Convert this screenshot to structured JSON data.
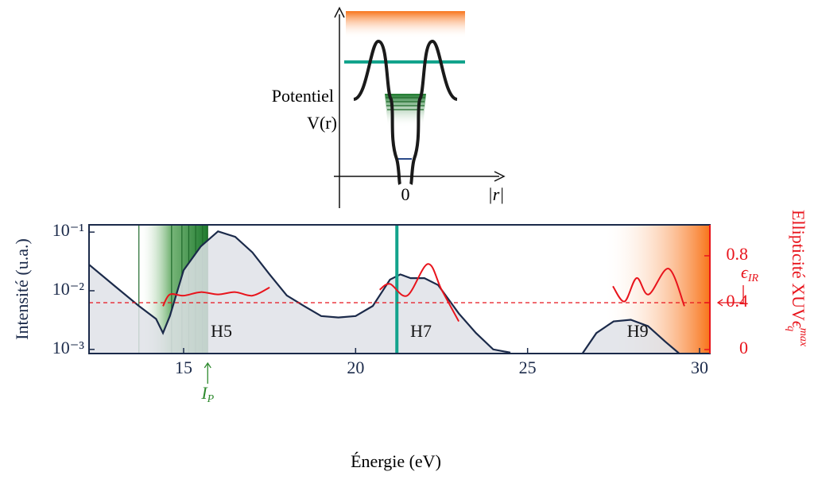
{
  "inset": {
    "labels": {
      "potential": "Potentiel",
      "vr": "V(r)",
      "origin": "0",
      "radius": "|r|"
    }
  },
  "chart_data": {
    "type": "line",
    "xlabel": "Énergie (eV)",
    "ylabel": "Intensité (u.a.)",
    "y2label": "Ellipticité XUV",
    "y2label_symbol": "ϵ",
    "y2label_sub": "q",
    "y2label_sup": "max",
    "xlim": [
      12.25,
      30.3
    ],
    "xticks": [
      15,
      20,
      25,
      30
    ],
    "ylim": [
      0.00085,
      0.133
    ],
    "log_y": true,
    "yticks": [
      {
        "value": 0.001,
        "label": "10⁻³"
      },
      {
        "value": 0.01,
        "label": "10⁻²"
      },
      {
        "value": 0.1,
        "label": "10⁻¹"
      }
    ],
    "y2lim": [
      -0.034,
      1.064
    ],
    "y2ticks": [
      0,
      0.4,
      0.8
    ],
    "series": [
      {
        "name": "Intensité",
        "color": "#1b2a4a",
        "fill": "#dfe2e8",
        "x": [
          12.25,
          13,
          13.7,
          14.2,
          14.4,
          14.6,
          15,
          15.5,
          16,
          16.5,
          17,
          17.5,
          18,
          18.5,
          19,
          19.5,
          20,
          20.5,
          21,
          21.3,
          21.6,
          22,
          22.4,
          23,
          23.5,
          24,
          24.5,
          null,
          26.6,
          27,
          27.5,
          28,
          28.5,
          29,
          29.4
        ],
        "values": [
          0.0279,
          0.012,
          0.0055,
          0.0033,
          0.0019,
          0.0037,
          0.0224,
          0.057,
          0.103,
          0.083,
          0.045,
          0.019,
          0.0083,
          0.0055,
          0.0037,
          0.0035,
          0.0037,
          0.0055,
          0.0155,
          0.019,
          0.0164,
          0.0164,
          0.0125,
          0.0041,
          0.0019,
          0.001,
          0.00088,
          null,
          0.00086,
          0.0019,
          0.003,
          0.0032,
          0.0025,
          0.00136,
          0.00086
        ]
      },
      {
        "name": "Ellipticité",
        "color": "#e8141c",
        "axis": "y2",
        "x": [
          14.4,
          14.6,
          15,
          15.5,
          16,
          16.5,
          17,
          17.5,
          null,
          20.7,
          21,
          21.5,
          22.1,
          22.5,
          23,
          null,
          27.48,
          27.82,
          28.17,
          28.52,
          29.1,
          29.56
        ],
        "values": [
          0.37,
          0.47,
          0.46,
          0.49,
          0.47,
          0.49,
          0.46,
          0.53,
          null,
          0.51,
          0.56,
          0.46,
          0.73,
          0.51,
          0.24,
          null,
          0.54,
          0.41,
          0.61,
          0.47,
          0.69,
          0.37
        ]
      }
    ],
    "reference_y2": 0.4,
    "reference_symbol": "ϵ",
    "reference_sub": "IR",
    "ionization_lines": [
      13.7,
      14.65,
      14.95,
      15.15,
      15.35,
      15.55,
      15.7
    ],
    "ionization_symbol": "I",
    "ionization_sub": "P",
    "ionization_x": 15.7,
    "resonance_line": 21.2,
    "continuum_start": 27.2,
    "harmonics": [
      {
        "label": "H5",
        "x": 16.1
      },
      {
        "label": "H7",
        "x": 21.9
      },
      {
        "label": "H9",
        "x": 28.2
      }
    ]
  }
}
